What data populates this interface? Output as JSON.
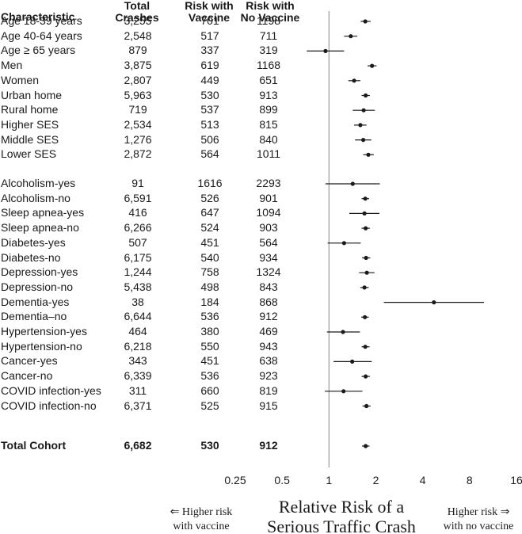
{
  "headers": {
    "characteristic": "Characteristic",
    "total_crashes": [
      "Total",
      "Crashes"
    ],
    "risk_vaccine": [
      "Risk with",
      "Vaccine"
    ],
    "risk_no_vaccine": [
      "Risk with",
      "No Vaccine"
    ]
  },
  "chart_data": {
    "type": "forest",
    "x_scale": "log2",
    "xlim": [
      0.25,
      16
    ],
    "xticks": [
      "0.25",
      "0.5",
      "1",
      "2",
      "4",
      "8",
      "16"
    ],
    "xtick_values": [
      0.25,
      0.5,
      1,
      2,
      4,
      8,
      16
    ],
    "reference_line": 1,
    "xlabel": [
      "Relative Risk of a",
      "Serious Traffic Crash"
    ],
    "left_annotation": [
      "⇐ Higher risk",
      "with vaccine"
    ],
    "right_annotation": [
      "Higher risk ⇒",
      "with no vaccine"
    ],
    "rows": [
      {
        "label": "Age 18-39 years",
        "crashes": "3,255",
        "vaccine": "701",
        "no_vaccine": "1198",
        "rr": 1.71,
        "lo": 1.6,
        "hi": 1.85
      },
      {
        "label": "Age 40-64 years",
        "crashes": "2,548",
        "vaccine": "517",
        "no_vaccine": "711",
        "rr": 1.38,
        "lo": 1.25,
        "hi": 1.52
      },
      {
        "label": "Age ≥ 65 years",
        "crashes": "879",
        "vaccine": "337",
        "no_vaccine": "319",
        "rr": 0.95,
        "lo": 0.72,
        "hi": 1.25
      },
      {
        "label": "Men",
        "crashes": "3,875",
        "vaccine": "619",
        "no_vaccine": "1168",
        "rr": 1.89,
        "lo": 1.77,
        "hi": 2.02
      },
      {
        "label": "Women",
        "crashes": "2,807",
        "vaccine": "449",
        "no_vaccine": "651",
        "rr": 1.45,
        "lo": 1.33,
        "hi": 1.59
      },
      {
        "label": "Urban home",
        "crashes": "5,963",
        "vaccine": "530",
        "no_vaccine": "913",
        "rr": 1.72,
        "lo": 1.62,
        "hi": 1.83
      },
      {
        "label": "Rural home",
        "crashes": "719",
        "vaccine": "537",
        "no_vaccine": "899",
        "rr": 1.67,
        "lo": 1.42,
        "hi": 1.97
      },
      {
        "label": "Higher SES",
        "crashes": "2,534",
        "vaccine": "513",
        "no_vaccine": "815",
        "rr": 1.59,
        "lo": 1.45,
        "hi": 1.74
      },
      {
        "label": "Middle SES",
        "crashes": "1,276",
        "vaccine": "506",
        "no_vaccine": "840",
        "rr": 1.66,
        "lo": 1.47,
        "hi": 1.87
      },
      {
        "label": "Lower SES",
        "crashes": "2,872",
        "vaccine": "564",
        "no_vaccine": "1011",
        "rr": 1.79,
        "lo": 1.66,
        "hi": 1.94
      },
      {
        "label": "Alcoholism-yes",
        "crashes": "91",
        "vaccine": "1616",
        "no_vaccine": "2293",
        "rr": 1.42,
        "lo": 0.95,
        "hi": 2.12
      },
      {
        "label": "Alcoholism-no",
        "crashes": "6,591",
        "vaccine": "526",
        "no_vaccine": "901",
        "rr": 1.71,
        "lo": 1.62,
        "hi": 1.81
      },
      {
        "label": "Sleep apnea-yes",
        "crashes": "416",
        "vaccine": "647",
        "no_vaccine": "1094",
        "rr": 1.69,
        "lo": 1.35,
        "hi": 2.11
      },
      {
        "label": "Sleep apnea-no",
        "crashes": "6,266",
        "vaccine": "524",
        "no_vaccine": "903",
        "rr": 1.72,
        "lo": 1.62,
        "hi": 1.83
      },
      {
        "label": "Diabetes-yes",
        "crashes": "507",
        "vaccine": "451",
        "no_vaccine": "564",
        "rr": 1.25,
        "lo": 0.98,
        "hi": 1.6
      },
      {
        "label": "Diabetes-no",
        "crashes": "6,175",
        "vaccine": "540",
        "no_vaccine": "934",
        "rr": 1.73,
        "lo": 1.63,
        "hi": 1.84
      },
      {
        "label": "Depression-yes",
        "crashes": "1,244",
        "vaccine": "758",
        "no_vaccine": "1324",
        "rr": 1.75,
        "lo": 1.56,
        "hi": 1.96
      },
      {
        "label": "Depression-no",
        "crashes": "5,438",
        "vaccine": "498",
        "no_vaccine": "843",
        "rr": 1.69,
        "lo": 1.59,
        "hi": 1.8
      },
      {
        "label": "Dementia-yes",
        "crashes": "38",
        "vaccine": "184",
        "no_vaccine": "868",
        "rr": 4.72,
        "lo": 2.25,
        "hi": 9.9
      },
      {
        "label": "Dementia–no",
        "crashes": "6,644",
        "vaccine": "536",
        "no_vaccine": "912",
        "rr": 1.7,
        "lo": 1.61,
        "hi": 1.8
      },
      {
        "label": "Hypertension-yes",
        "crashes": "464",
        "vaccine": "380",
        "no_vaccine": "469",
        "rr": 1.23,
        "lo": 0.97,
        "hi": 1.58
      },
      {
        "label": "Hypertension-no",
        "crashes": "6,218",
        "vaccine": "550",
        "no_vaccine": "943",
        "rr": 1.71,
        "lo": 1.62,
        "hi": 1.82
      },
      {
        "label": "Cancer-yes",
        "crashes": "343",
        "vaccine": "451",
        "no_vaccine": "638",
        "rr": 1.41,
        "lo": 1.07,
        "hi": 1.88
      },
      {
        "label": "Cancer-no",
        "crashes": "6,339",
        "vaccine": "536",
        "no_vaccine": "923",
        "rr": 1.72,
        "lo": 1.62,
        "hi": 1.83
      },
      {
        "label": "COVID infection-yes",
        "crashes": "311",
        "vaccine": "660",
        "no_vaccine": "819",
        "rr": 1.24,
        "lo": 0.94,
        "hi": 1.64
      },
      {
        "label": "COVID infection-no",
        "crashes": "6,371",
        "vaccine": "525",
        "no_vaccine": "915",
        "rr": 1.74,
        "lo": 1.64,
        "hi": 1.85
      },
      {
        "label": "Total Cohort",
        "crashes": "6,682",
        "vaccine": "530",
        "no_vaccine": "912",
        "rr": 1.72,
        "lo": 1.63,
        "hi": 1.82,
        "bold": true
      }
    ]
  }
}
